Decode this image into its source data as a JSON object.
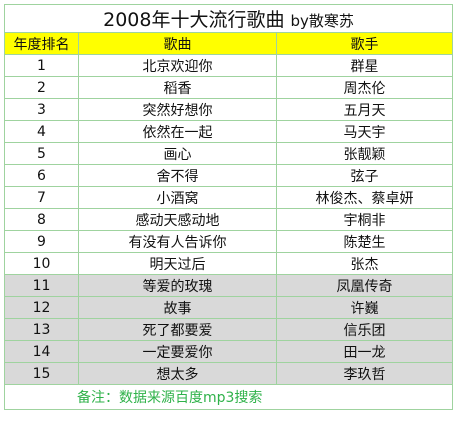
{
  "title": "2008年十大流行歌曲",
  "author": "by散寒苏",
  "headers": {
    "rank": "年度排名",
    "song": "歌曲",
    "singer": "歌手"
  },
  "rows": [
    {
      "rank": "1",
      "song": "北京欢迎你",
      "singer": "群星",
      "shaded": false
    },
    {
      "rank": "2",
      "song": "稻香",
      "singer": "周杰伦",
      "shaded": false
    },
    {
      "rank": "3",
      "song": "突然好想你",
      "singer": "五月天",
      "shaded": false
    },
    {
      "rank": "4",
      "song": "依然在一起",
      "singer": "马天宇",
      "shaded": false
    },
    {
      "rank": "5",
      "song": "画心",
      "singer": "张靓颖",
      "shaded": false
    },
    {
      "rank": "6",
      "song": "舍不得",
      "singer": "弦子",
      "shaded": false
    },
    {
      "rank": "7",
      "song": "小酒窝",
      "singer": "林俊杰、蔡卓妍",
      "shaded": false
    },
    {
      "rank": "8",
      "song": "感动天感动地",
      "singer": "宇桐非",
      "shaded": false
    },
    {
      "rank": "9",
      "song": "有没有人告诉你",
      "singer": "陈楚生",
      "shaded": false
    },
    {
      "rank": "10",
      "song": "明天过后",
      "singer": "张杰",
      "shaded": false
    },
    {
      "rank": "11",
      "song": "等爱的玫瑰",
      "singer": "凤凰传奇",
      "shaded": true
    },
    {
      "rank": "12",
      "song": "故事",
      "singer": "许巍",
      "shaded": true
    },
    {
      "rank": "13",
      "song": "死了都要爱",
      "singer": "信乐团",
      "shaded": true
    },
    {
      "rank": "14",
      "song": "一定要爱你",
      "singer": "田一龙",
      "shaded": true
    },
    {
      "rank": "15",
      "song": "想太多",
      "singer": "李玖哲",
      "shaded": true
    }
  ],
  "note": "备注：数据来源百度mp3搜索",
  "colors": {
    "header_bg": "#ffff00",
    "shaded_bg": "#d9d9d9",
    "note_text": "#2fb24a",
    "grid": "#9fd39f"
  }
}
